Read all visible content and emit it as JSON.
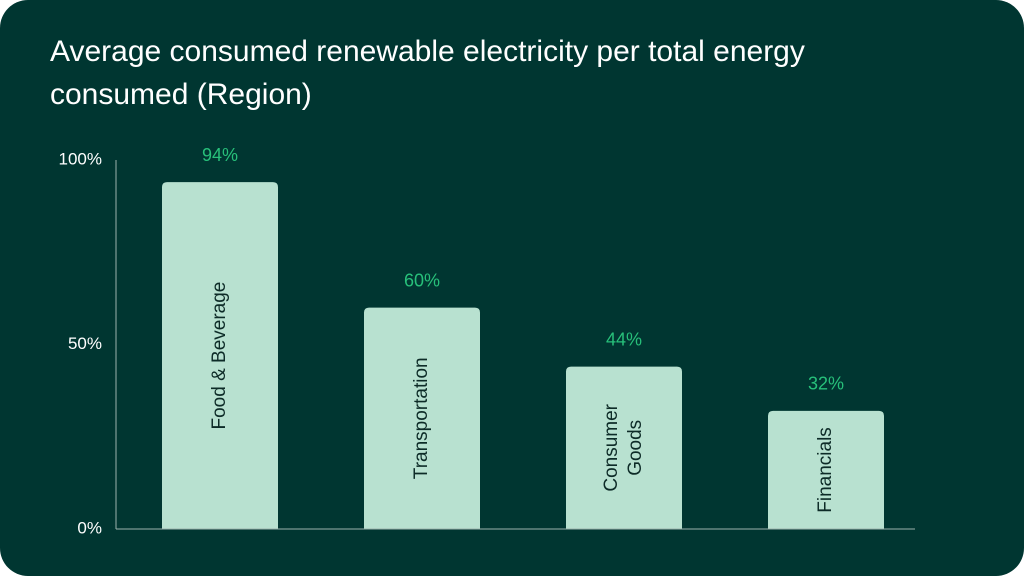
{
  "chart_data": {
    "type": "bar",
    "title": "Average consumed renewable electricity per total energy consumed (Region)",
    "categories": [
      "Food & Beverage",
      "Transportation",
      "Consumer Goods",
      "Financials"
    ],
    "category_lines": [
      [
        "Food & Beverage"
      ],
      [
        "Transportation"
      ],
      [
        "Consumer",
        "Goods"
      ],
      [
        "Financials"
      ]
    ],
    "values": [
      94,
      60,
      44,
      32
    ],
    "value_labels": [
      "94%",
      "60%",
      "44%",
      "32%"
    ],
    "ylim": [
      0,
      100
    ],
    "yticks": [
      0,
      50,
      100
    ],
    "ytick_labels": [
      "0%",
      "50%",
      "100%"
    ],
    "xlabel": "",
    "ylabel": "",
    "grid": false,
    "legend": "none",
    "colors": {
      "background": "#003631",
      "bar": "#b8e1d0",
      "value_label": "#27c07a",
      "category_label": "#0d2b27",
      "axis": "#9bb3ad",
      "text": "#ffffff"
    }
  }
}
